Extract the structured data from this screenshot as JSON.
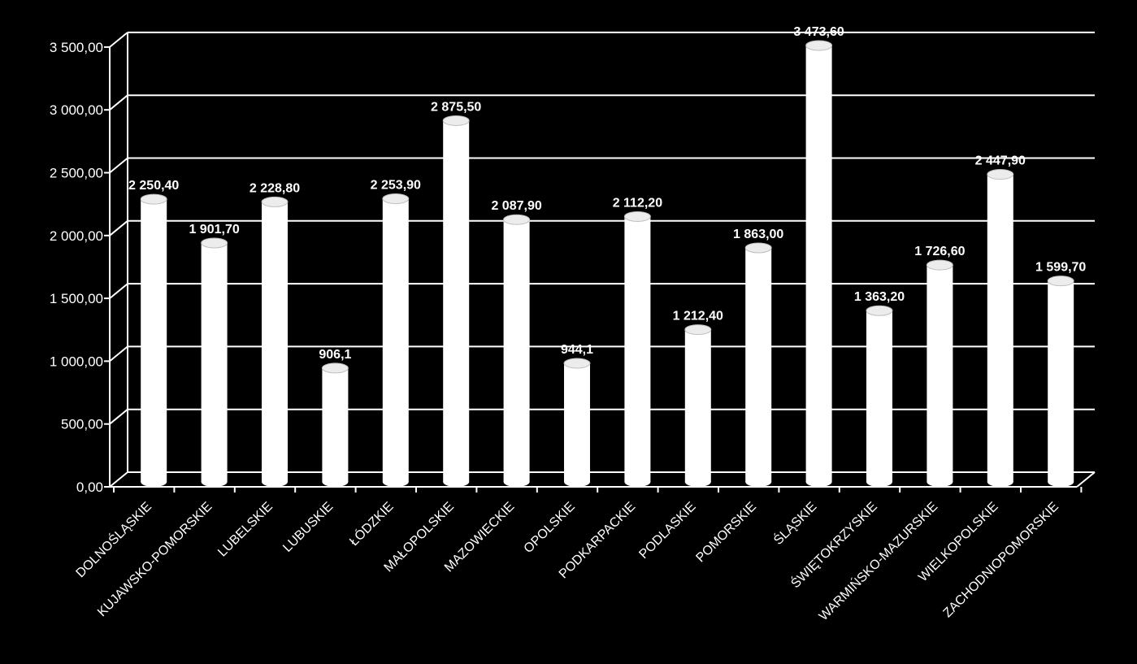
{
  "chart_data": {
    "type": "bar",
    "categories": [
      "DOLNOŚLĄSKIE",
      "KUJAWSKO-POMORSKIE",
      "LUBELSKIE",
      "LUBUSKIE",
      "ŁÓDZKIE",
      "MAŁOPOLSKIE",
      "MAZOWIECKIE",
      "OPOLSKIE",
      "PODKARPACKIE",
      "PODLASKIE",
      "POMORSKIE",
      "ŚLĄSKIE",
      "ŚWIĘTOKRZYSKIE",
      "WARMIŃSKO-MAZURSKIE",
      "WIELKOPOLSKIE",
      "ZACHODNIOPOMORSKIE"
    ],
    "values": [
      2250.4,
      1901.7,
      2228.8,
      906.1,
      2253.9,
      2875.5,
      2087.9,
      944.1,
      2112.2,
      1212.4,
      1863.0,
      3473.6,
      1363.2,
      1726.6,
      2447.9,
      1599.7
    ],
    "value_labels": [
      "2 250,40",
      "1 901,70",
      "2 228,80",
      "906,1",
      "2 253,90",
      "2 875,50",
      "2 087,90",
      "944,1",
      "2 112,20",
      "1 212,40",
      "1 863,00",
      "3 473,60",
      "1 363,20",
      "1 726,60",
      "2 447,90",
      "1 599,70"
    ],
    "yticks": [
      "0,00",
      "500,00",
      "1 000,00",
      "1 500,00",
      "2 000,00",
      "2 500,00",
      "3 000,00",
      "3 500,00"
    ],
    "ylim": [
      0,
      3500
    ],
    "grid": true,
    "style": "3d-cylinder",
    "colors": {
      "background": "#000000",
      "bar": "#ffffff",
      "grid": "#ffffff",
      "text": "#ffffff"
    }
  }
}
